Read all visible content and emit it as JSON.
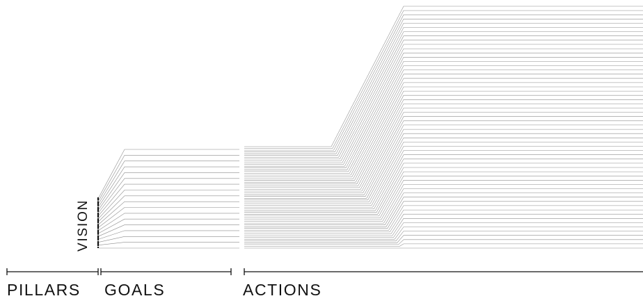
{
  "vision": "VISION",
  "stages": [
    {
      "label": "PILLARS"
    },
    {
      "label": "GOALS"
    },
    {
      "label": "ACTIONS"
    }
  ],
  "colors": {
    "ink": "#111111",
    "thread": "#8c8c8c",
    "background": "#ffffff"
  }
}
